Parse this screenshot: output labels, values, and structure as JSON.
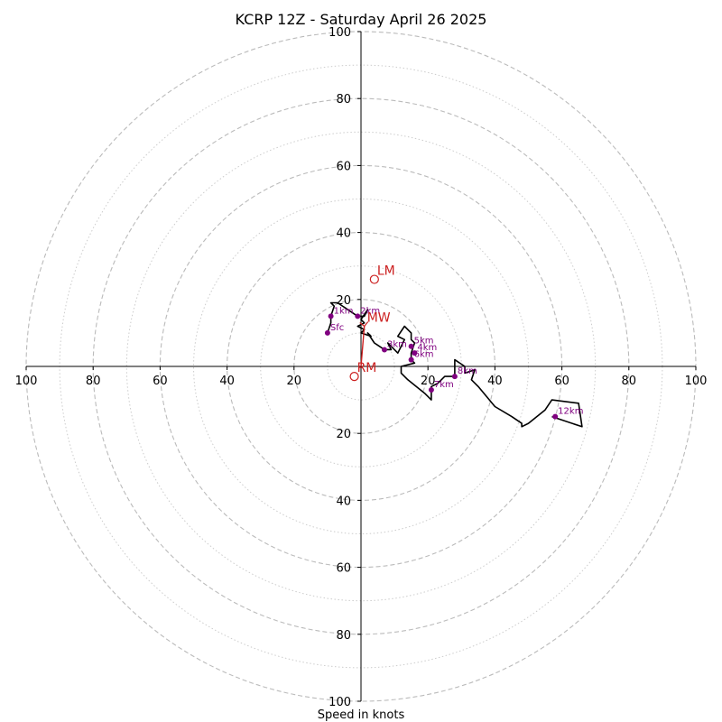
{
  "chart_data": {
    "type": "hodograph",
    "title": "KCRP 12Z - Saturday April 26 2025",
    "xlabel": "Speed in knots",
    "xlim": [
      -100,
      100
    ],
    "ylim": [
      -100,
      100
    ],
    "ring_major": [
      20,
      40,
      60,
      80,
      100
    ],
    "ring_minor": [
      10,
      30,
      50,
      70,
      90
    ],
    "x_ticks": [
      "100",
      "80",
      "60",
      "40",
      "20",
      "20",
      "40",
      "60",
      "80",
      "100"
    ],
    "x_tick_values": [
      -100,
      -80,
      -60,
      -40,
      -20,
      20,
      40,
      60,
      80,
      100
    ],
    "y_ticks": [
      "100",
      "80",
      "60",
      "40",
      "20",
      "20",
      "40",
      "60",
      "80",
      "100"
    ],
    "y_tick_values": [
      100,
      80,
      60,
      40,
      20,
      -20,
      -40,
      -60,
      -80,
      -100
    ],
    "colors": {
      "trace": "#000000",
      "height_marker": "#800080",
      "motion_marker": "#cc2020",
      "ring_grid": "#bbbbbb",
      "axis": "#000000"
    },
    "hodograph_trace": [
      [
        -10,
        10
      ],
      [
        -9,
        13
      ],
      [
        -9,
        15
      ],
      [
        -8,
        18
      ],
      [
        -9,
        19
      ],
      [
        -7,
        19
      ],
      [
        -4,
        17
      ],
      [
        -1,
        15
      ],
      [
        0,
        15
      ],
      [
        1,
        15
      ],
      [
        2,
        17
      ],
      [
        0,
        14
      ],
      [
        1,
        13
      ],
      [
        -1,
        12
      ],
      [
        1,
        11
      ],
      [
        0,
        10
      ],
      [
        3,
        9
      ],
      [
        2,
        10
      ],
      [
        4,
        7
      ],
      [
        7,
        5
      ],
      [
        9,
        5
      ],
      [
        8,
        7
      ],
      [
        11,
        4
      ],
      [
        13,
        8
      ],
      [
        11,
        9
      ],
      [
        13,
        12
      ],
      [
        15,
        10
      ],
      [
        15,
        8
      ],
      [
        16,
        7
      ],
      [
        15,
        4
      ],
      [
        15,
        2
      ],
      [
        16,
        1
      ],
      [
        12,
        0
      ],
      [
        12,
        -2
      ],
      [
        14,
        -4
      ],
      [
        19,
        -8
      ],
      [
        21,
        -10
      ],
      [
        21,
        -6
      ],
      [
        23,
        -5
      ],
      [
        25,
        -3
      ],
      [
        28,
        -3
      ],
      [
        28,
        2
      ],
      [
        31,
        0
      ],
      [
        31,
        -2
      ],
      [
        34,
        -1
      ],
      [
        33,
        -4
      ],
      [
        35,
        -6
      ],
      [
        40,
        -12
      ],
      [
        45,
        -15
      ],
      [
        48,
        -17
      ],
      [
        48,
        -18
      ],
      [
        50,
        -17
      ],
      [
        55,
        -13
      ],
      [
        57,
        -10
      ],
      [
        65,
        -11
      ],
      [
        66,
        -18
      ],
      [
        57,
        -15
      ]
    ],
    "height_markers": [
      {
        "label": "Sfc",
        "u": -10,
        "v": 10
      },
      {
        "label": "1km",
        "u": -9,
        "v": 15
      },
      {
        "label": "2km",
        "u": -1,
        "v": 15
      },
      {
        "label": "3km",
        "u": 7,
        "v": 5
      },
      {
        "label": "4km",
        "u": 16,
        "v": 4
      },
      {
        "label": "5km",
        "u": 15,
        "v": 6
      },
      {
        "label": "6km",
        "u": 15,
        "v": 2
      },
      {
        "label": "7km",
        "u": 21,
        "v": -7
      },
      {
        "label": "8km",
        "u": 28,
        "v": -3
      },
      {
        "label": "12km",
        "u": 58,
        "v": -15
      }
    ],
    "storm_motion": [
      {
        "label": "LM",
        "u": 4,
        "v": 26,
        "marker": "open-circle"
      },
      {
        "label": "MW",
        "u": 1,
        "v": 12,
        "marker": "arrow-tip"
      },
      {
        "label": "RM",
        "u": -2,
        "v": -3,
        "marker": "open-circle"
      }
    ],
    "rm_vector": {
      "from": [
        0,
        0
      ],
      "to": [
        1,
        12
      ]
    }
  }
}
